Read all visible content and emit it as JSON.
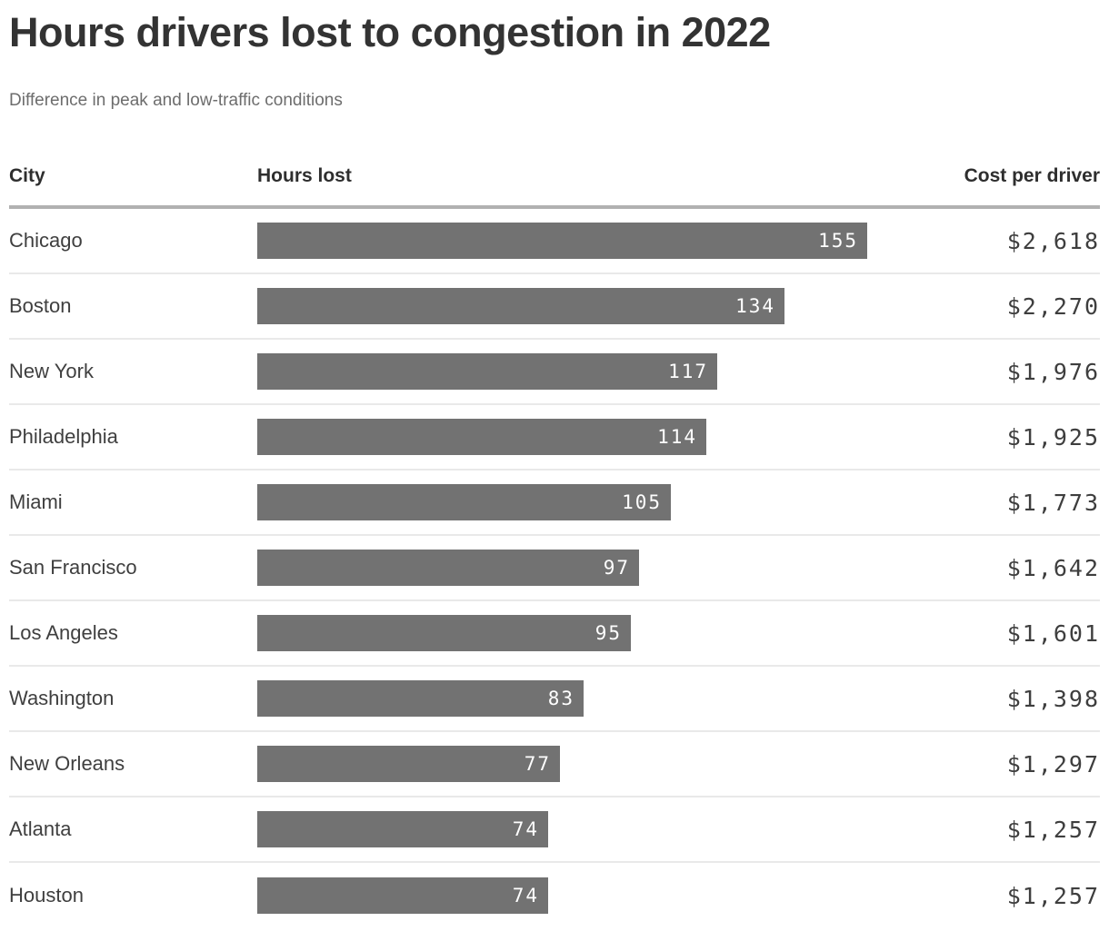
{
  "title": "Hours drivers lost to congestion in 2022",
  "subtitle": "Difference in peak and low-traffic conditions",
  "table": {
    "columns": [
      "City",
      "Hours lost",
      "Cost per driver"
    ]
  },
  "rows": [
    {
      "city": "Chicago",
      "hours": 155,
      "cost": "$2,618"
    },
    {
      "city": "Boston",
      "hours": 134,
      "cost": "$2,270"
    },
    {
      "city": "New York",
      "hours": 117,
      "cost": "$1,976"
    },
    {
      "city": "Philadelphia",
      "hours": 114,
      "cost": "$1,925"
    },
    {
      "city": "Miami",
      "hours": 105,
      "cost": "$1,773"
    },
    {
      "city": "San Francisco",
      "hours": 97,
      "cost": "$1,642"
    },
    {
      "city": "Los Angeles",
      "hours": 95,
      "cost": "$1,601"
    },
    {
      "city": "Washington",
      "hours": 83,
      "cost": "$1,398"
    },
    {
      "city": "New Orleans",
      "hours": 77,
      "cost": "$1,297"
    },
    {
      "city": "Atlanta",
      "hours": 74,
      "cost": "$1,257"
    },
    {
      "city": "Houston",
      "hours": 74,
      "cost": "$1,257"
    }
  ],
  "chart_data": {
    "type": "bar",
    "orientation": "horizontal",
    "title": "Hours drivers lost to congestion in 2022",
    "subtitle": "Difference in peak and low-traffic conditions",
    "categories": [
      "Chicago",
      "Boston",
      "New York",
      "Philadelphia",
      "Miami",
      "San Francisco",
      "Los Angeles",
      "Washington",
      "New Orleans",
      "Atlanta",
      "Houston"
    ],
    "series": [
      {
        "name": "Hours lost",
        "values": [
          155,
          134,
          117,
          114,
          105,
          97,
          95,
          83,
          77,
          74,
          74
        ]
      },
      {
        "name": "Cost per driver",
        "values": [
          "$2,618",
          "$2,270",
          "$1,976",
          "$1,925",
          "$1,773",
          "$1,642",
          "$1,601",
          "$1,398",
          "$1,297",
          "$1,257",
          "$1,257"
        ]
      }
    ],
    "xlim": [
      0,
      155
    ],
    "grid": false,
    "legend": false,
    "value_labels": "inside-end",
    "bar_color": "#727272",
    "value_label_color": "#ffffff"
  }
}
